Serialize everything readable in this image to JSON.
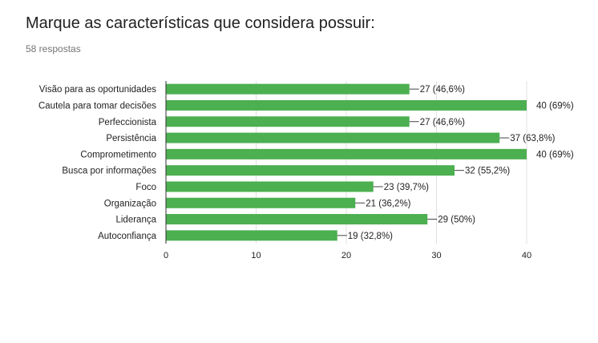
{
  "form": {
    "question_title": "Marque as características que considera possuir:",
    "response_count": "58 respostas"
  },
  "colors": {
    "bar": "#4caf50",
    "grid": "#e0e0e0",
    "axis": "#333333",
    "text": "#222222"
  },
  "chart_data": {
    "type": "bar",
    "orientation": "horizontal",
    "categories": [
      "Visão para as oportunidades",
      "Cautela para tomar decisões",
      "Perfeccionista",
      "Persistência",
      "Comprometimento",
      "Busca por informações",
      "Foco",
      "Organização",
      "Liderança",
      "Autoconfiança"
    ],
    "values": [
      27,
      40,
      27,
      37,
      40,
      32,
      23,
      21,
      29,
      19
    ],
    "data_labels": [
      "27 (46,6%)",
      "40 (69%)",
      "27 (46,6%)",
      "37 (63,8%)",
      "40 (69%)",
      "32 (55,2%)",
      "23 (39,7%)",
      "21 (36,2%)",
      "29 (50%)",
      "19 (32,8%)"
    ],
    "x_ticks": [
      "0",
      "10",
      "20",
      "30",
      "40"
    ],
    "xlim": [
      0,
      40
    ],
    "grid": true,
    "legend": "none"
  }
}
